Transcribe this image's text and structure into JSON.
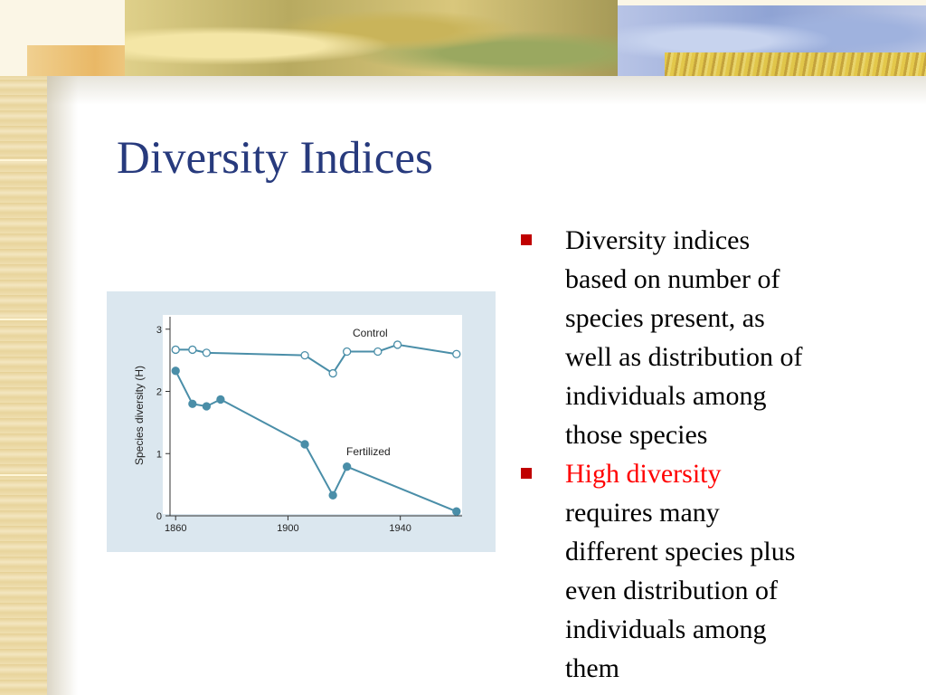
{
  "slide": {
    "title": "Diversity Indices",
    "bullets": [
      {
        "lines": [
          "Diversity indices",
          "based on number of",
          "species present, as",
          "well as distribution of",
          "individuals among",
          "those species"
        ]
      },
      {
        "highlight": "High diversity",
        "lines": [
          "requires many",
          "different species plus",
          "even distribution of",
          "individuals among",
          "them"
        ]
      }
    ],
    "colors": {
      "title": "#273a7d",
      "bullet_marker": "#c00000",
      "highlight": "#ff0000",
      "series": "#4a8ea8",
      "chart_bg": "#dbe7ef"
    }
  },
  "chart_data": {
    "type": "line",
    "title": "",
    "xlabel": "",
    "ylabel": "Species diversity (H)",
    "xlim": [
      1858,
      1962
    ],
    "ylim": [
      0,
      3.2
    ],
    "xticks": [
      1860,
      1900,
      1940
    ],
    "yticks": [
      0,
      1,
      2,
      3
    ],
    "grid": false,
    "series": [
      {
        "name": "Control",
        "marker": "open-circle",
        "x": [
          1860,
          1866,
          1871,
          1906,
          1916,
          1921,
          1932,
          1939,
          1960
        ],
        "y": [
          2.67,
          2.67,
          2.62,
          2.58,
          2.29,
          2.64,
          2.64,
          2.75,
          2.6
        ]
      },
      {
        "name": "Fertilized",
        "marker": "filled-circle",
        "x": [
          1860,
          1866,
          1871,
          1876,
          1906,
          1916,
          1921,
          1960
        ],
        "y": [
          2.33,
          1.8,
          1.76,
          1.87,
          1.15,
          0.33,
          0.79,
          0.07
        ]
      }
    ]
  }
}
